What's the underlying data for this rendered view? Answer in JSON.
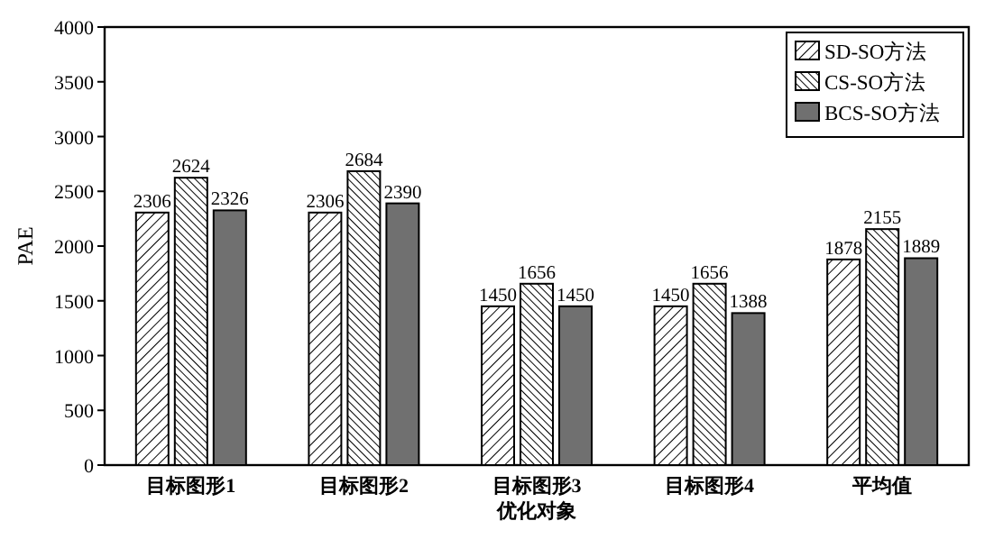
{
  "chart_data": {
    "type": "bar",
    "xlabel": "优化对象",
    "ylabel": "PAE",
    "categories": [
      "目标图形1",
      "目标图形2",
      "目标图形3",
      "目标图形4",
      "平均值"
    ],
    "series": [
      {
        "name": "SD-SO方法",
        "color": "#000000",
        "values": [
          2306,
          2306,
          1450,
          1450,
          1878
        ]
      },
      {
        "name": "CS-SO方法",
        "color": "#000000",
        "values": [
          2624,
          2684,
          1656,
          1656,
          2155
        ]
      },
      {
        "name": "BCS-SO方法",
        "color": "#707070",
        "values": [
          2326,
          2390,
          1450,
          1388,
          1889
        ]
      }
    ],
    "ylim": [
      0,
      4000
    ],
    "yticks": [
      0,
      500,
      1000,
      1500,
      2000,
      2500,
      3000,
      3500,
      4000
    ],
    "data_labels": true,
    "legend": "top right",
    "grid": false
  }
}
